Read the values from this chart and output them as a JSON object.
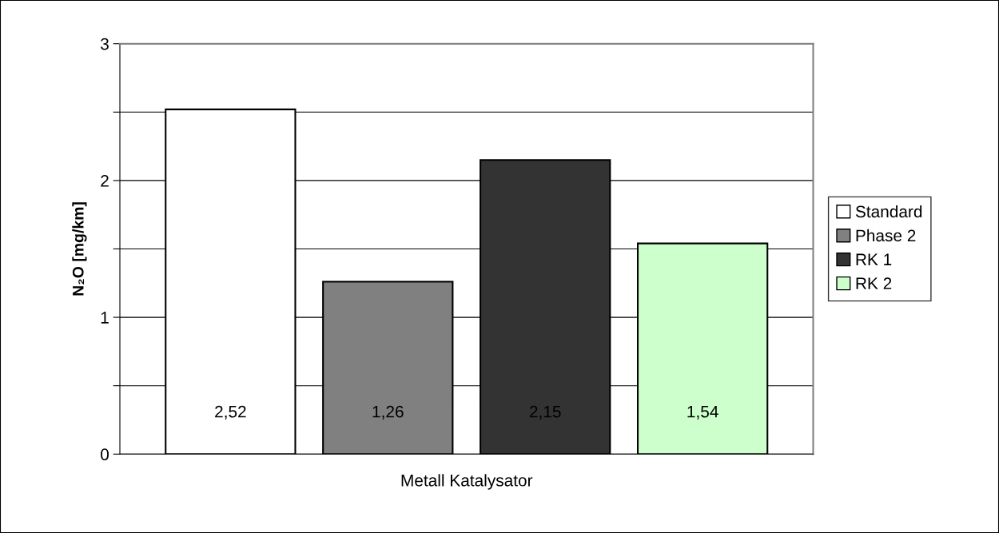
{
  "chart_data": {
    "type": "bar",
    "ylabel": "N₂O [mg/km]",
    "categories": [
      "Metall Katalysator"
    ],
    "series": [
      {
        "name": "Standard",
        "color": "#ffffff",
        "values": [
          2.52
        ],
        "value_labels": [
          "2,52"
        ]
      },
      {
        "name": "Phase 2",
        "color": "#808080",
        "values": [
          1.26
        ],
        "value_labels": [
          "1,26"
        ]
      },
      {
        "name": "RK 1",
        "color": "#333333",
        "values": [
          2.15
        ],
        "value_labels": [
          "2,15"
        ]
      },
      {
        "name": "RK 2",
        "color": "#ccffcc",
        "values": [
          1.54
        ],
        "value_labels": [
          "1,54"
        ]
      }
    ],
    "ylim": [
      0,
      3
    ],
    "yticks": [
      0,
      {
        "value": 0.5,
        "label": null
      },
      1,
      {
        "value": 1.5,
        "label": null
      },
      2,
      {
        "value": 2.5,
        "label": null
      },
      3
    ],
    "grid": "y",
    "legend": "right"
  }
}
